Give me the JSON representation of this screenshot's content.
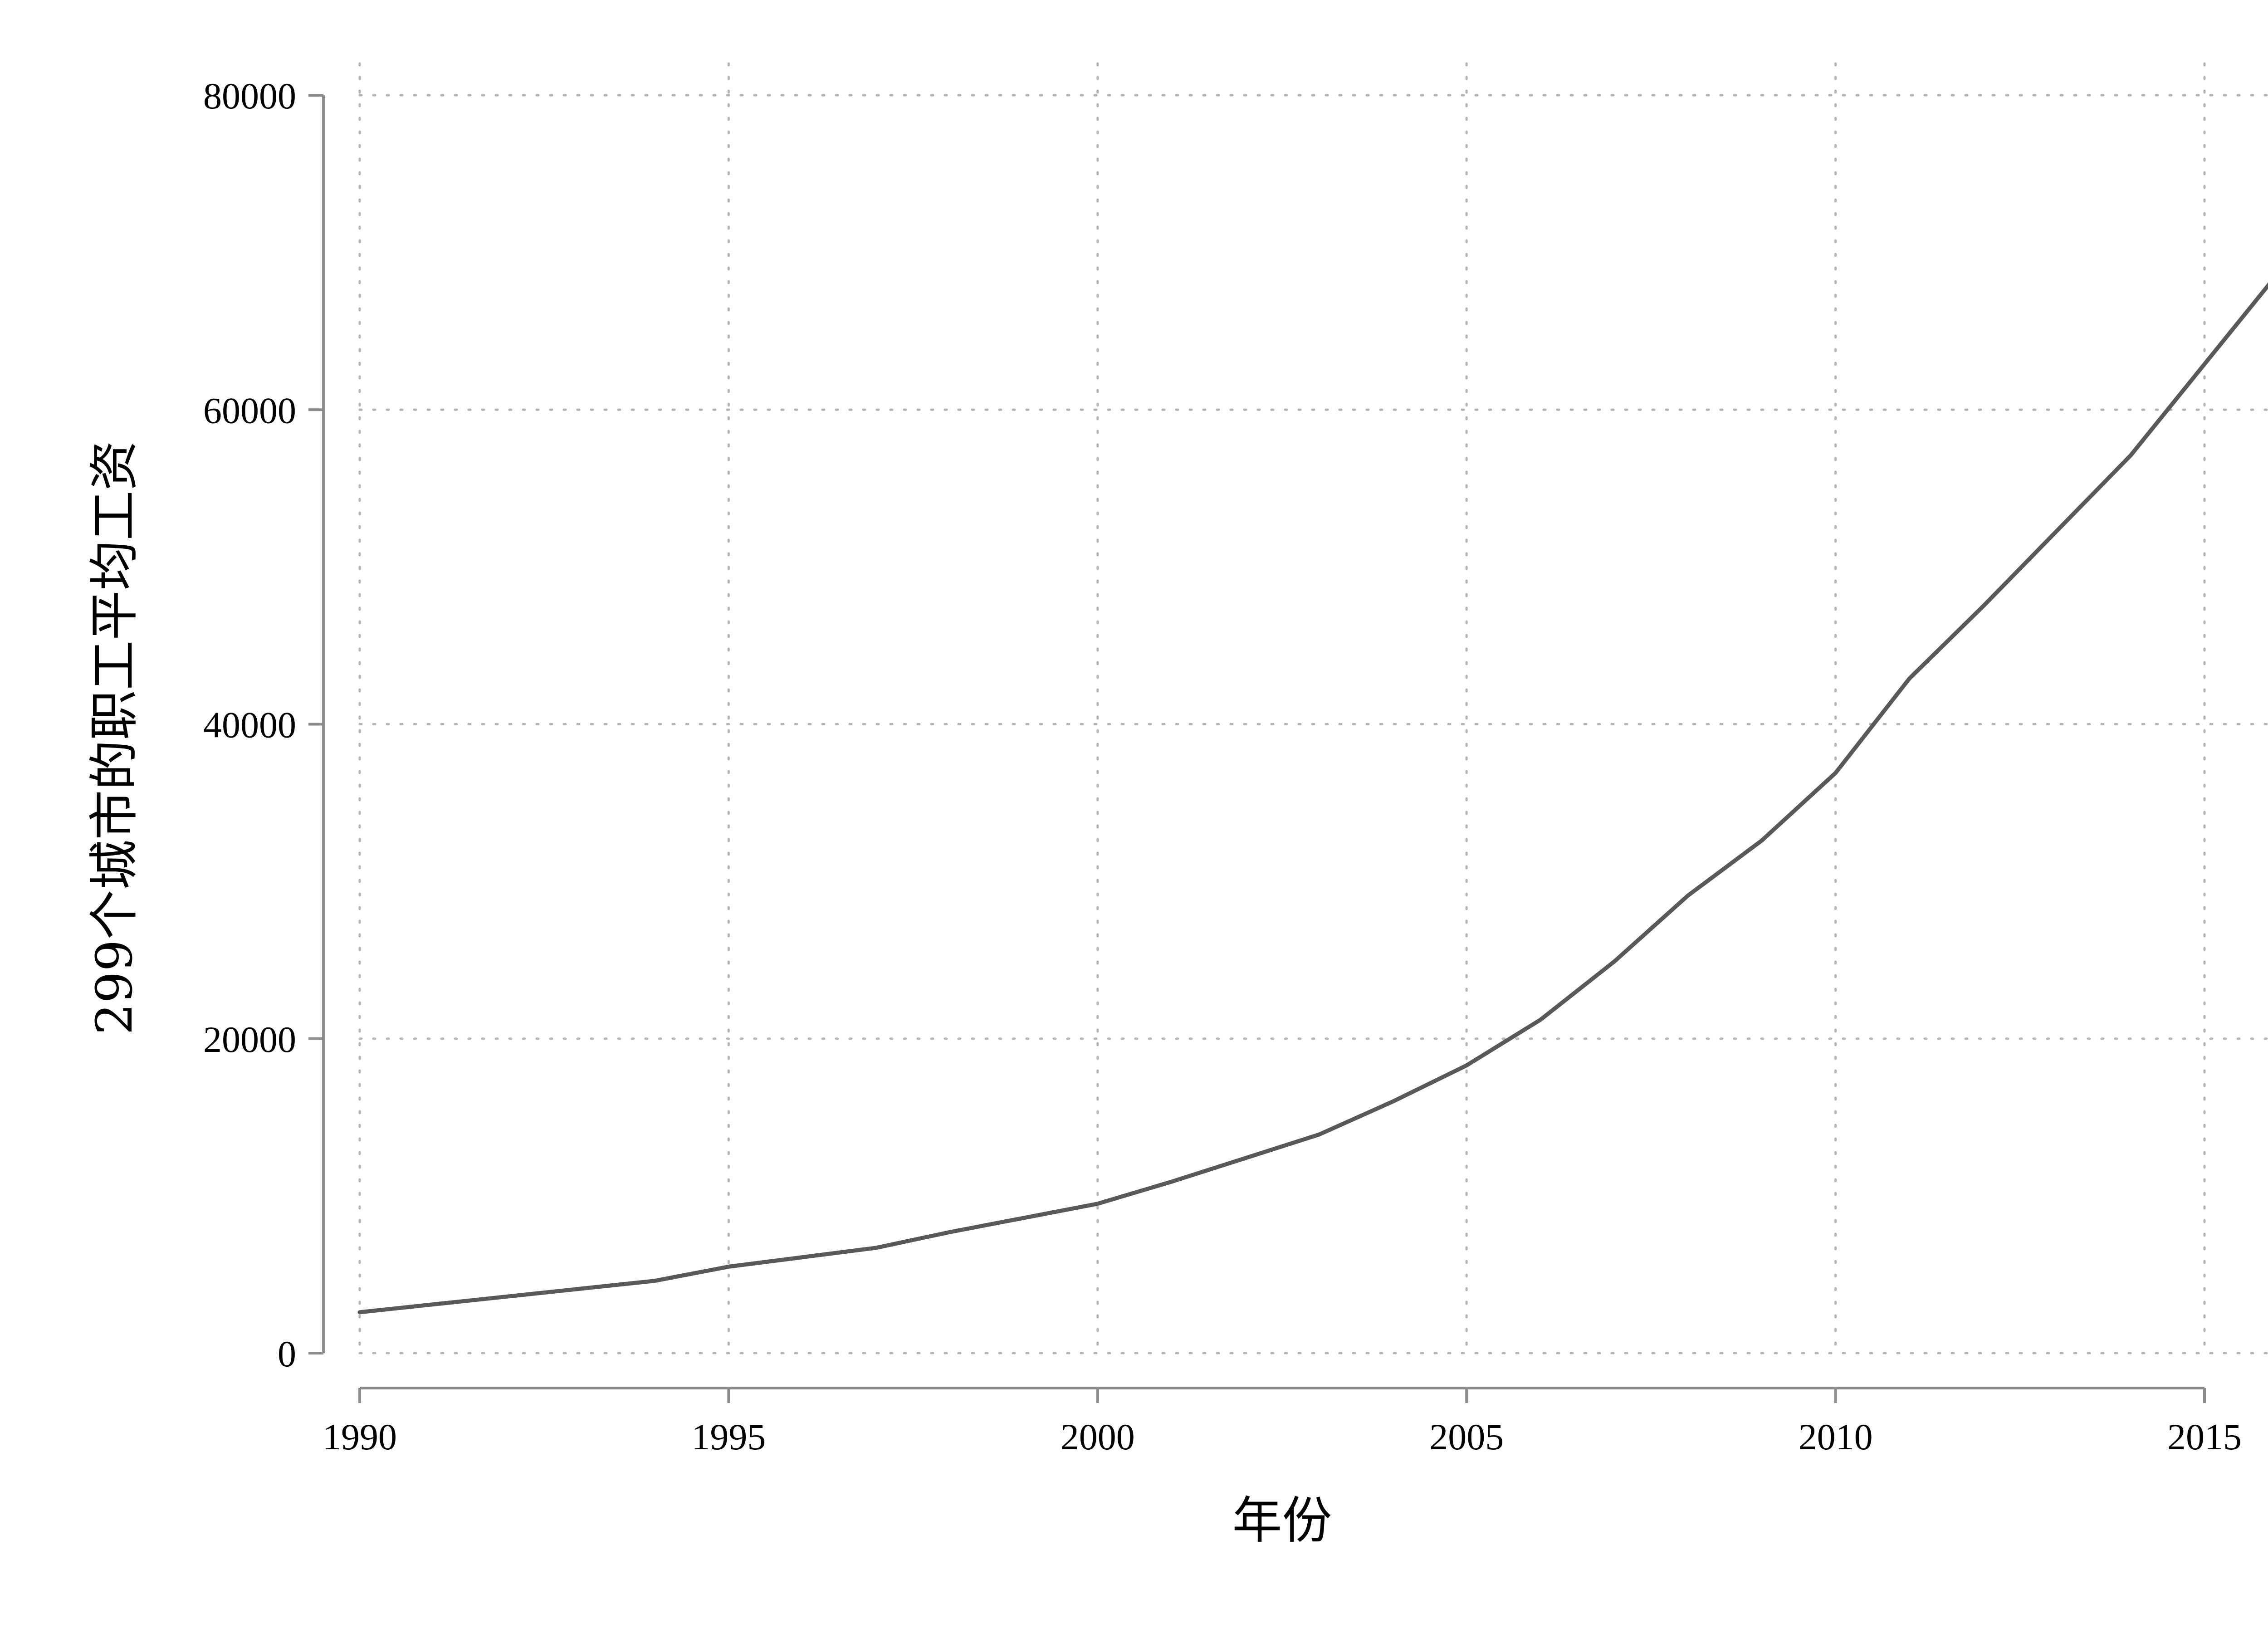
{
  "chart_data": {
    "type": "line",
    "xlabel": "年份",
    "ylabel": "299个城市的职工平均工资",
    "xlim": [
      1990,
      2016
    ],
    "ylim": [
      0,
      80000
    ],
    "xticks": [
      1990,
      1995,
      2000,
      2005,
      2010,
      2015
    ],
    "yticks": [
      0,
      20000,
      40000,
      60000,
      80000
    ],
    "grid": true,
    "line_color": "#595959",
    "x": [
      1990,
      1991,
      1992,
      1993,
      1994,
      1995,
      1996,
      1997,
      1998,
      1999,
      2000,
      2001,
      2002,
      2003,
      2004,
      2005,
      2006,
      2007,
      2008,
      2009,
      2010,
      2011,
      2012,
      2013,
      2014,
      2015,
      2016
    ],
    "series": [
      {
        "values": [
          2600,
          3100,
          3600,
          4100,
          4600,
          5500,
          6100,
          6700,
          7700,
          8600,
          9500,
          10900,
          12400,
          13900,
          16000,
          18300,
          21200,
          24900,
          29100,
          32600,
          36900,
          42900,
          47500,
          52300,
          57100,
          62900,
          68700
        ]
      }
    ]
  }
}
